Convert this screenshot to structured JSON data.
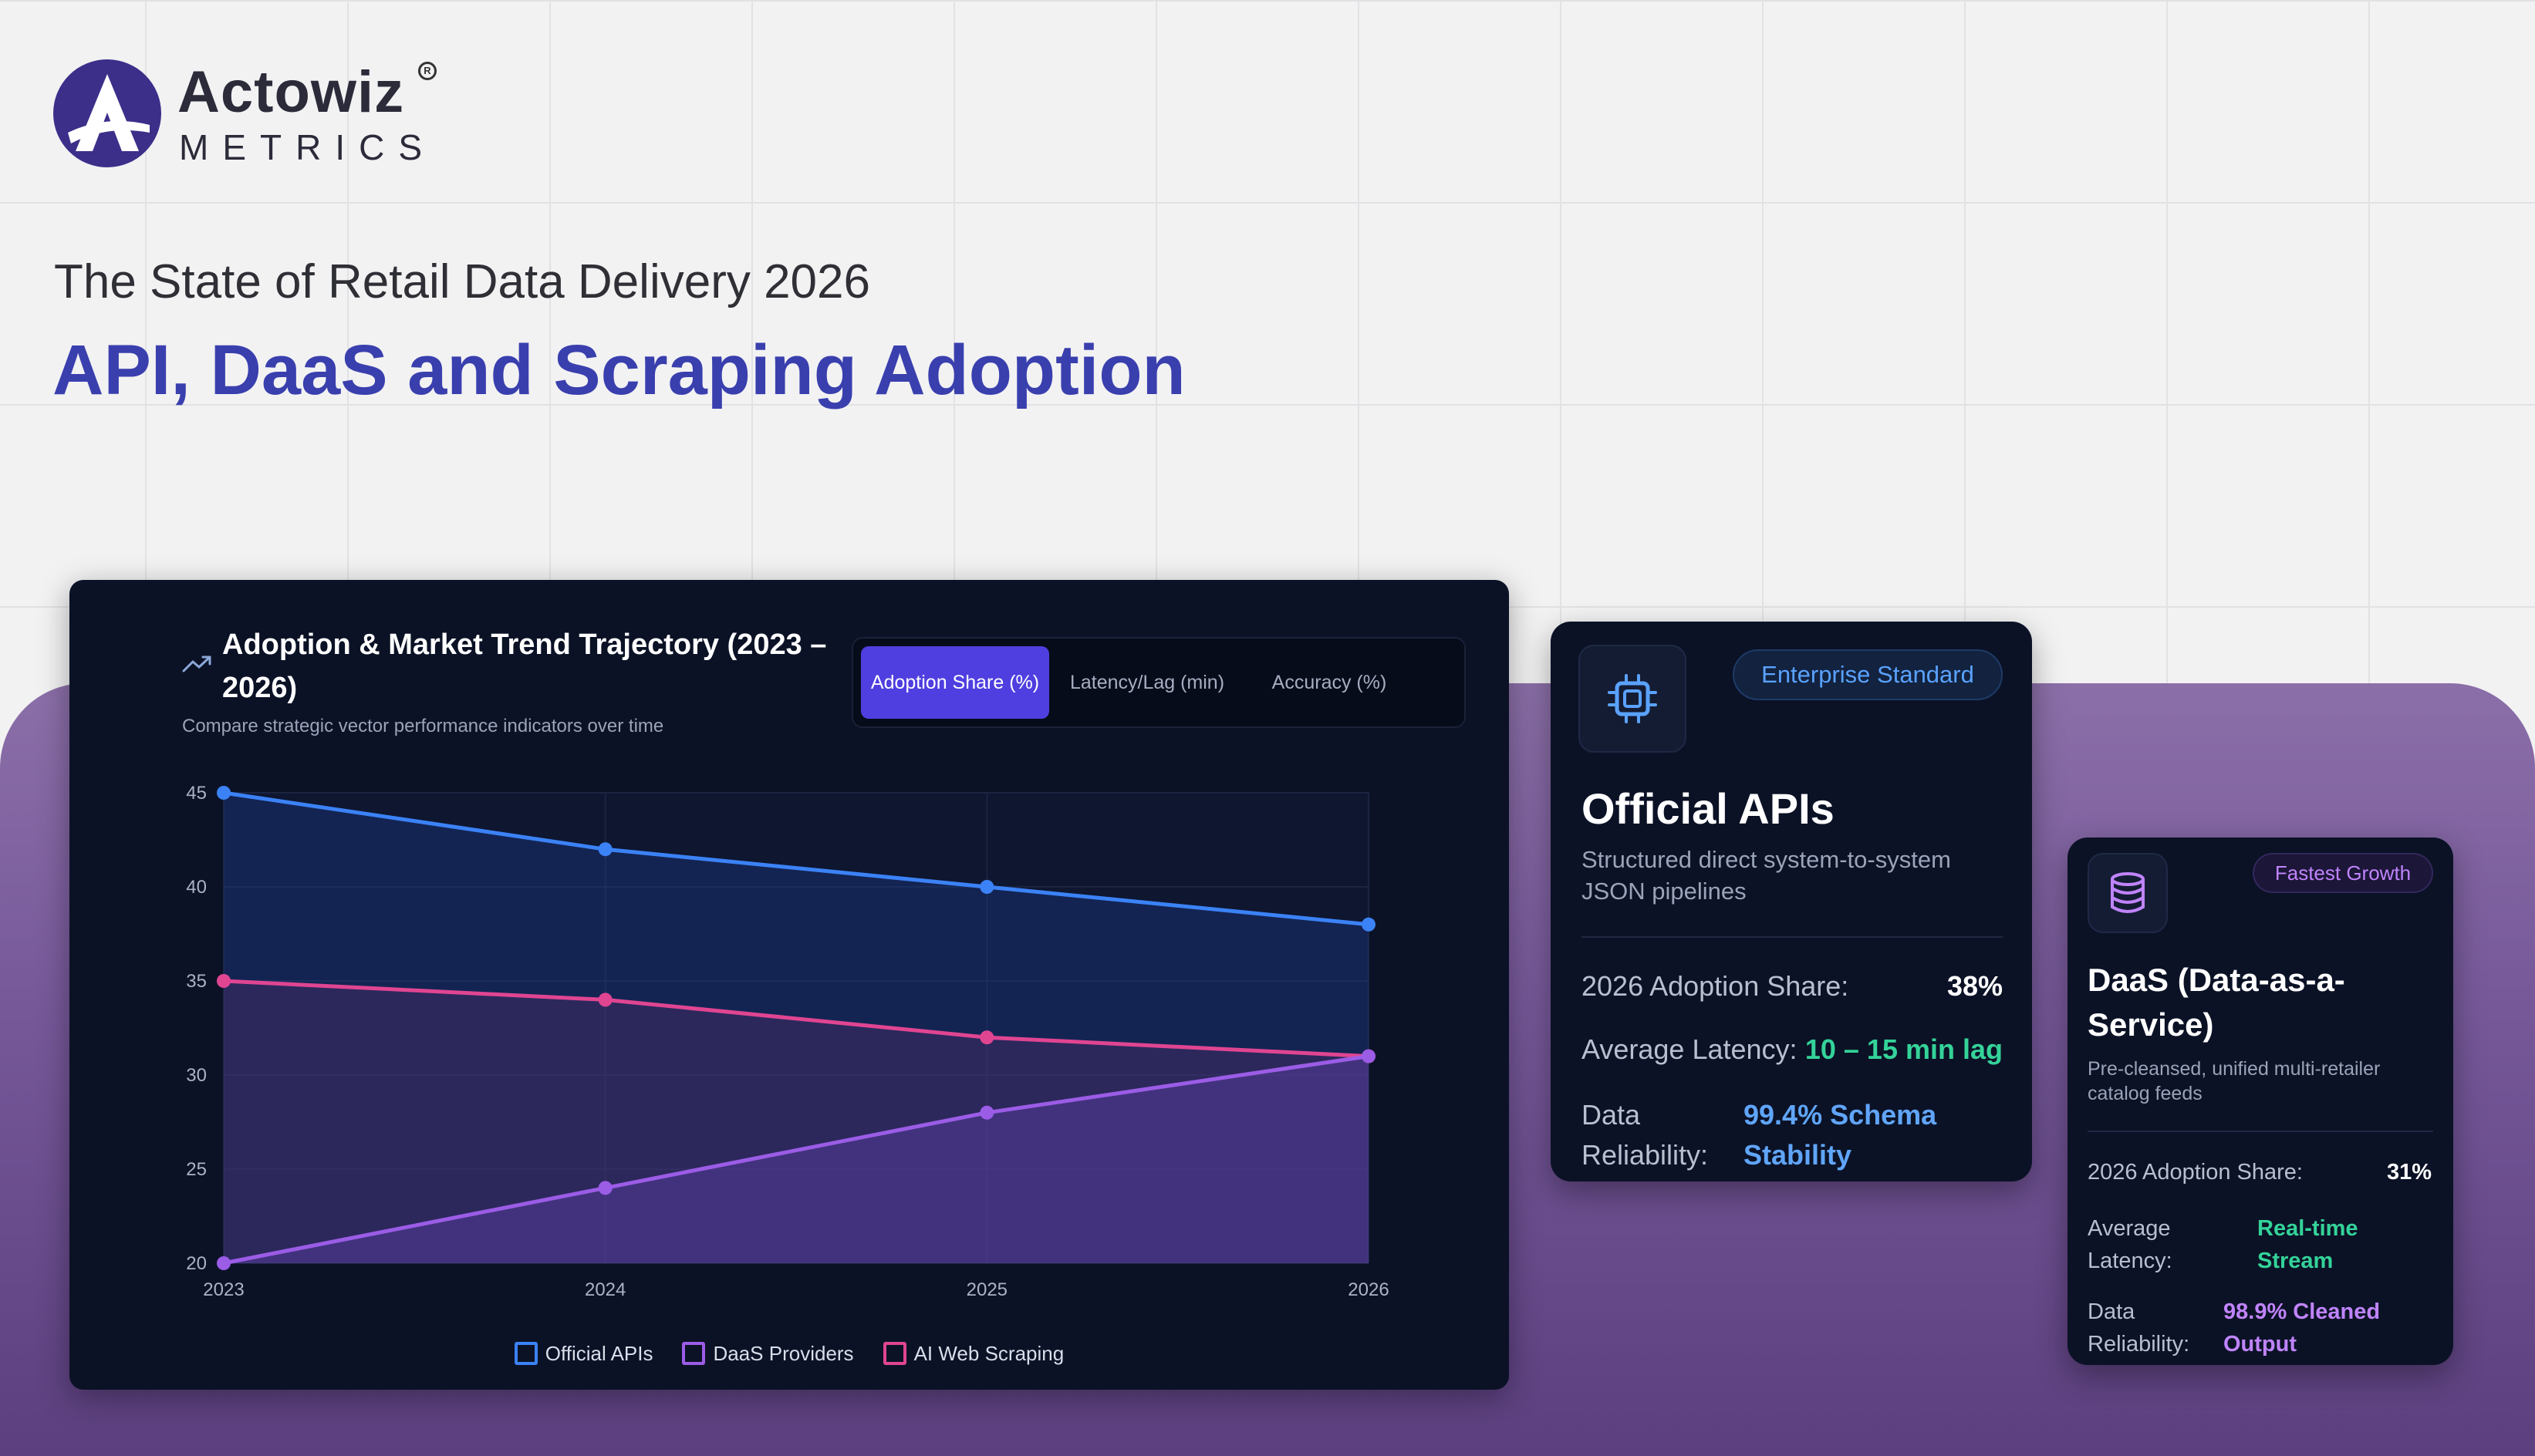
{
  "brand": {
    "name": "Actowiz",
    "sub": "METRICS",
    "registered": "R",
    "color": "#3a3fae"
  },
  "header": {
    "subtitle": "The State of Retail Data Delivery 2026",
    "title": "API, DaaS and Scraping Adoption"
  },
  "chart_panel": {
    "icon": "trend-up-icon",
    "title": "Adoption & Market Trend Trajectory (2023 – 2026)",
    "subtitle": "Compare strategic vector performance indicators over time",
    "tabs": [
      {
        "label": "Adoption Share (%)",
        "active": true
      },
      {
        "label": "Latency/Lag (min)",
        "active": false
      },
      {
        "label": "Accuracy (%)",
        "active": false
      }
    ]
  },
  "chart_data": {
    "type": "area",
    "title": "Adoption & Market Trend Trajectory (2023 – 2026)",
    "categories": [
      "2023",
      "2024",
      "2025",
      "2026"
    ],
    "ylim": [
      20,
      45
    ],
    "yticks": [
      20,
      25,
      30,
      35,
      40,
      45
    ],
    "grid": true,
    "legend": "bottom",
    "series": [
      {
        "name": "Official APIs",
        "values": [
          45,
          42,
          40,
          38
        ],
        "color": "#3b82f6"
      },
      {
        "name": "AI Web Scraping",
        "values": [
          35,
          34,
          32,
          31
        ],
        "color": "#e04592"
      },
      {
        "name": "DaaS Providers",
        "values": [
          20,
          24,
          28,
          31
        ],
        "color": "#9b5ce6"
      }
    ],
    "legend_order": [
      "Official APIs",
      "DaaS Providers",
      "AI Web Scraping"
    ]
  },
  "cards": {
    "api": {
      "icon": "chip-icon",
      "badge": "Enterprise Standard",
      "name": "Official APIs",
      "description": "Structured direct system-to-system JSON pipelines",
      "adoption_label": "2026 Adoption Share:",
      "adoption_value": "38%",
      "latency_label": "Average Latency:",
      "latency_value": "10 – 15 min lag",
      "reliability_label": "Data Reliability:",
      "reliability_value": "99.4% Schema Stability",
      "colors": {
        "badge": "#5aa2ff",
        "latency": "#34d399",
        "reliability": "#60a5fa"
      }
    },
    "daas": {
      "icon": "database-icon",
      "badge": "Fastest Growth",
      "name": "DaaS (Data-as-a-Service)",
      "description": "Pre-cleansed, unified multi-retailer catalog feeds",
      "adoption_label": "2026 Adoption Share:",
      "adoption_value": "31%",
      "latency_label": "Average Latency:",
      "latency_value": "Real-time Stream",
      "reliability_label": "Data Reliability:",
      "reliability_value": "98.9% Cleaned Output",
      "colors": {
        "badge": "#c084fc",
        "latency": "#34d399",
        "reliability": "#c084fc"
      }
    }
  }
}
